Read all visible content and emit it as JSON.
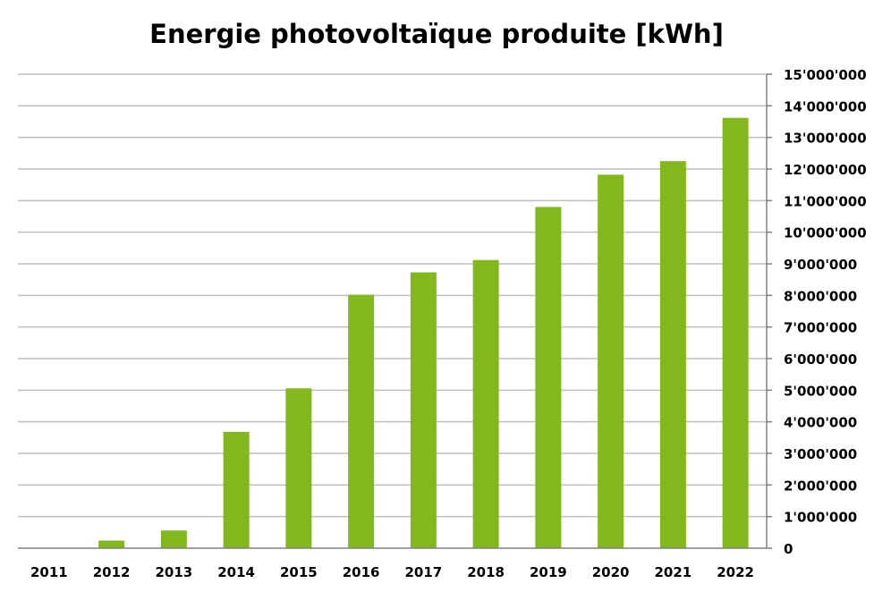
{
  "chart_data": {
    "type": "bar",
    "title": "Energie photovoltaïque produite [kWh]",
    "xlabel": "",
    "ylabel": "",
    "categories": [
      "2011",
      "2012",
      "2013",
      "2014",
      "2015",
      "2016",
      "2017",
      "2018",
      "2019",
      "2020",
      "2021",
      "2022"
    ],
    "values": [
      0,
      240000,
      560000,
      3680000,
      5060000,
      8020000,
      8730000,
      9120000,
      10800000,
      11820000,
      12250000,
      13620000
    ],
    "ylim": [
      0,
      15000000
    ],
    "y_ticks": [
      "0",
      "1'000'000",
      "2'000'000",
      "3'000'000",
      "4'000'000",
      "5'000'000",
      "6'000'000",
      "7'000'000",
      "8'000'000",
      "9'000'000",
      "10'000'000",
      "11'000'000",
      "12'000'000",
      "13'000'000",
      "14'000'000",
      "15'000'000"
    ],
    "y_axis_side": "right",
    "grid": true,
    "legend": "none",
    "bar_color": "#82b81e"
  }
}
